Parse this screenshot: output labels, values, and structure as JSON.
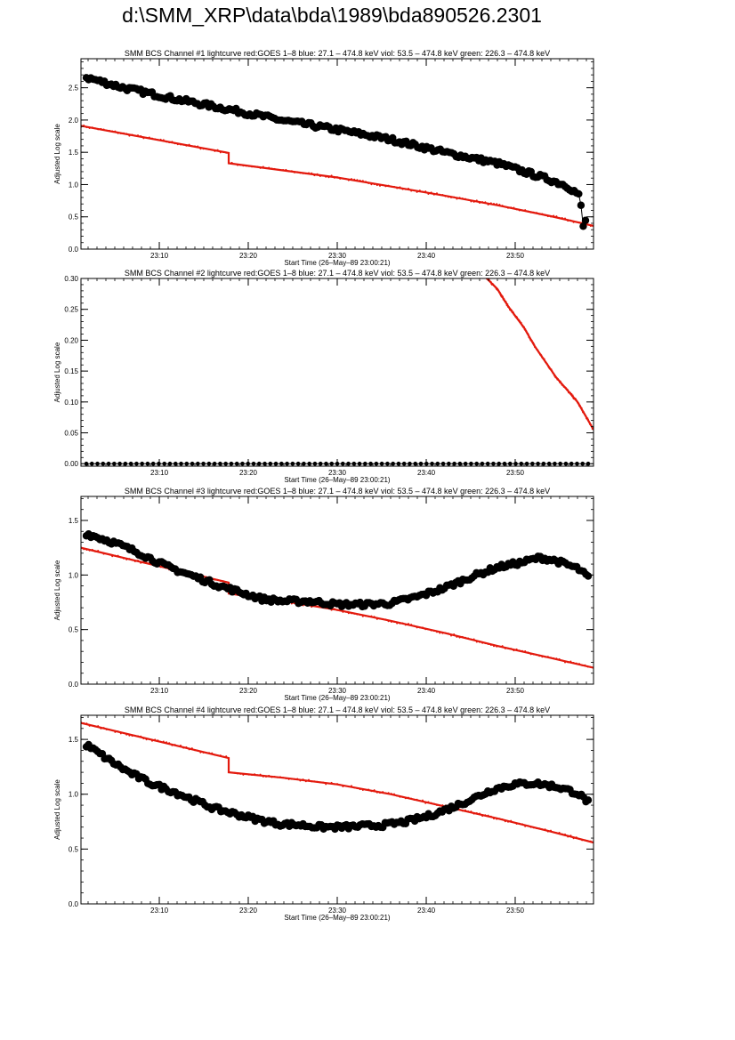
{
  "page": {
    "title": "d:\\SMM_XRP\\data\\bda\\1989\\bda890526.2301"
  },
  "colors": {
    "goes": "#e31a0e",
    "bcs": "#000000",
    "axis": "#000000"
  },
  "chart_data": [
    {
      "type": "scatter",
      "title": "SMM BCS Channel #1 lightcurve  red:GOES 1–8  blue: 27.1 – 474.8 keV  viol: 53.5 – 474.8 keV  green: 226.3 – 474.8 keV",
      "xlabel": "Start Time (26–May–89 23:00:21)",
      "ylabel": "Adjusted Log scale",
      "xlim": [
        23.02,
        23.98
      ],
      "ylim": [
        0.0,
        2.95
      ],
      "xticks": [
        {
          "v": 23.1667,
          "label": "23:10"
        },
        {
          "v": 23.3333,
          "label": "23:20"
        },
        {
          "v": 23.5,
          "label": "23:30"
        },
        {
          "v": 23.6667,
          "label": "23:40"
        },
        {
          "v": 23.8333,
          "label": "23:50"
        }
      ],
      "yticks": [
        {
          "v": 0.0,
          "label": "0.0"
        },
        {
          "v": 0.5,
          "label": "0.5"
        },
        {
          "v": 1.0,
          "label": "1.0"
        },
        {
          "v": 1.5,
          "label": "1.5"
        },
        {
          "v": 2.0,
          "label": "2.0"
        },
        {
          "v": 2.5,
          "label": "2.5"
        }
      ],
      "series": [
        {
          "color": "#e31a0e",
          "style": "line",
          "x": [
            23.02,
            23.2967,
            23.2967,
            23.5,
            23.6,
            23.7,
            23.8,
            23.9,
            23.98
          ],
          "y": [
            1.91,
            1.49,
            1.33,
            1.11,
            0.97,
            0.83,
            0.68,
            0.51,
            0.36
          ]
        },
        {
          "color": "#000000",
          "style": "points",
          "x": [
            23.03,
            23.1,
            23.2,
            23.3,
            23.4,
            23.5,
            23.6,
            23.7,
            23.8,
            23.85,
            23.9,
            23.93,
            23.95,
            23.955,
            23.96,
            23.965
          ],
          "y": [
            2.66,
            2.5,
            2.32,
            2.16,
            1.99,
            1.85,
            1.7,
            1.5,
            1.33,
            1.2,
            1.07,
            0.98,
            0.86,
            0.8,
            0.34,
            0.43
          ]
        }
      ]
    },
    {
      "type": "scatter",
      "title": "SMM BCS Channel #2 lightcurve  red:GOES 1–8  blue: 27.1 – 474.8 keV  viol: 53.5 – 474.8 keV  green: 226.3 – 474.8 keV",
      "xlabel": "Start Time (26–May–89 23:00:21)",
      "ylabel": "Adjusted Log scale",
      "xlim": [
        23.02,
        23.98
      ],
      "ylim": [
        -0.004,
        0.3
      ],
      "xticks": [
        {
          "v": 23.1667,
          "label": "23:10"
        },
        {
          "v": 23.3333,
          "label": "23:20"
        },
        {
          "v": 23.5,
          "label": "23:30"
        },
        {
          "v": 23.6667,
          "label": "23:40"
        },
        {
          "v": 23.8333,
          "label": "23:50"
        }
      ],
      "yticks": [
        {
          "v": 0.0,
          "label": "0.00"
        },
        {
          "v": 0.05,
          "label": "0.05"
        },
        {
          "v": 0.1,
          "label": "0.10"
        },
        {
          "v": 0.15,
          "label": "0.15"
        },
        {
          "v": 0.2,
          "label": "0.20"
        },
        {
          "v": 0.25,
          "label": "0.25"
        },
        {
          "v": 0.3,
          "label": "0.30"
        }
      ],
      "series": [
        {
          "color": "#e31a0e",
          "style": "line",
          "x": [
            23.78,
            23.8,
            23.82,
            23.85,
            23.87,
            23.89,
            23.91,
            23.93,
            23.95,
            23.97,
            23.98
          ],
          "y": [
            0.3,
            0.283,
            0.255,
            0.22,
            0.19,
            0.165,
            0.14,
            0.12,
            0.1,
            0.07,
            0.055
          ]
        },
        {
          "color": "#000000",
          "style": "points",
          "x": [
            23.03,
            23.1,
            23.2,
            23.3,
            23.4,
            23.5,
            23.6,
            23.7,
            23.8,
            23.9,
            23.97
          ],
          "y": [
            0.0,
            0.0,
            0.0,
            0.0,
            0.0,
            0.0,
            0.0,
            0.0,
            0.0,
            0.0,
            0.0
          ]
        }
      ]
    },
    {
      "type": "scatter",
      "title": "SMM BCS Channel #3 lightcurve  red:GOES 1–8  blue: 27.1 – 474.8 keV  viol: 53.5 – 474.8 keV  green: 226.3 – 474.8 keV",
      "xlabel": "Start Time (26–May–89 23:00:21)",
      "ylabel": "Adjusted Log scale",
      "xlim": [
        23.02,
        23.98
      ],
      "ylim": [
        0.0,
        1.72
      ],
      "xticks": [
        {
          "v": 23.1667,
          "label": "23:10"
        },
        {
          "v": 23.3333,
          "label": "23:20"
        },
        {
          "v": 23.5,
          "label": "23:30"
        },
        {
          "v": 23.6667,
          "label": "23:40"
        },
        {
          "v": 23.8333,
          "label": "23:50"
        }
      ],
      "yticks": [
        {
          "v": 0.0,
          "label": "0.0"
        },
        {
          "v": 0.5,
          "label": "0.5"
        },
        {
          "v": 1.0,
          "label": "1.0"
        },
        {
          "v": 1.5,
          "label": "1.5"
        }
      ],
      "series": [
        {
          "color": "#e31a0e",
          "style": "line",
          "x": [
            23.02,
            23.2967,
            23.2967,
            23.4,
            23.5,
            23.6,
            23.7,
            23.8,
            23.9,
            23.98
          ],
          "y": [
            1.25,
            0.93,
            0.83,
            0.76,
            0.68,
            0.58,
            0.47,
            0.35,
            0.24,
            0.15
          ]
        },
        {
          "color": "#000000",
          "style": "points",
          "x": [
            23.03,
            23.08,
            23.13,
            23.18,
            23.23,
            23.28,
            23.32,
            23.36,
            23.4,
            23.45,
            23.5,
            23.55,
            23.6,
            23.65,
            23.7,
            23.75,
            23.8,
            23.85,
            23.88,
            23.91,
            23.95,
            23.97
          ],
          "y": [
            1.38,
            1.3,
            1.2,
            1.08,
            0.99,
            0.9,
            0.84,
            0.78,
            0.76,
            0.76,
            0.73,
            0.73,
            0.74,
            0.8,
            0.88,
            0.98,
            1.07,
            1.12,
            1.16,
            1.13,
            1.06,
            0.98
          ]
        }
      ]
    },
    {
      "type": "scatter",
      "title": "SMM BCS Channel #4 lightcurve  red:GOES 1–8  blue: 27.1 – 474.8 keV  viol: 53.5 – 474.8 keV  green: 226.3 – 474.8 keV",
      "xlabel": "Start Time (26–May–89 23:00:21)",
      "ylabel": "Adjusted Log scale",
      "xlim": [
        23.02,
        23.98
      ],
      "ylim": [
        0.0,
        1.72
      ],
      "xticks": [
        {
          "v": 23.1667,
          "label": "23:10"
        },
        {
          "v": 23.3333,
          "label": "23:20"
        },
        {
          "v": 23.5,
          "label": "23:30"
        },
        {
          "v": 23.6667,
          "label": "23:40"
        },
        {
          "v": 23.8333,
          "label": "23:50"
        }
      ],
      "yticks": [
        {
          "v": 0.0,
          "label": "0.0"
        },
        {
          "v": 0.5,
          "label": "0.5"
        },
        {
          "v": 1.0,
          "label": "1.0"
        },
        {
          "v": 1.5,
          "label": "1.5"
        }
      ],
      "series": [
        {
          "color": "#e31a0e",
          "style": "line",
          "x": [
            23.02,
            23.2967,
            23.2967,
            23.4,
            23.5,
            23.6,
            23.7,
            23.8,
            23.9,
            23.98
          ],
          "y": [
            1.65,
            1.33,
            1.2,
            1.15,
            1.09,
            1.0,
            0.89,
            0.78,
            0.66,
            0.56
          ]
        },
        {
          "color": "#000000",
          "style": "points",
          "x": [
            23.03,
            23.07,
            23.11,
            23.15,
            23.19,
            23.23,
            23.27,
            23.31,
            23.35,
            23.39,
            23.43,
            23.47,
            23.51,
            23.55,
            23.59,
            23.63,
            23.67,
            23.71,
            23.75,
            23.79,
            23.83,
            23.87,
            23.91,
            23.95,
            23.97
          ],
          "y": [
            1.45,
            1.32,
            1.2,
            1.1,
            1.03,
            0.95,
            0.87,
            0.82,
            0.77,
            0.73,
            0.72,
            0.7,
            0.7,
            0.71,
            0.72,
            0.75,
            0.8,
            0.87,
            0.95,
            1.04,
            1.09,
            1.1,
            1.07,
            1.01,
            0.93
          ]
        }
      ]
    }
  ]
}
